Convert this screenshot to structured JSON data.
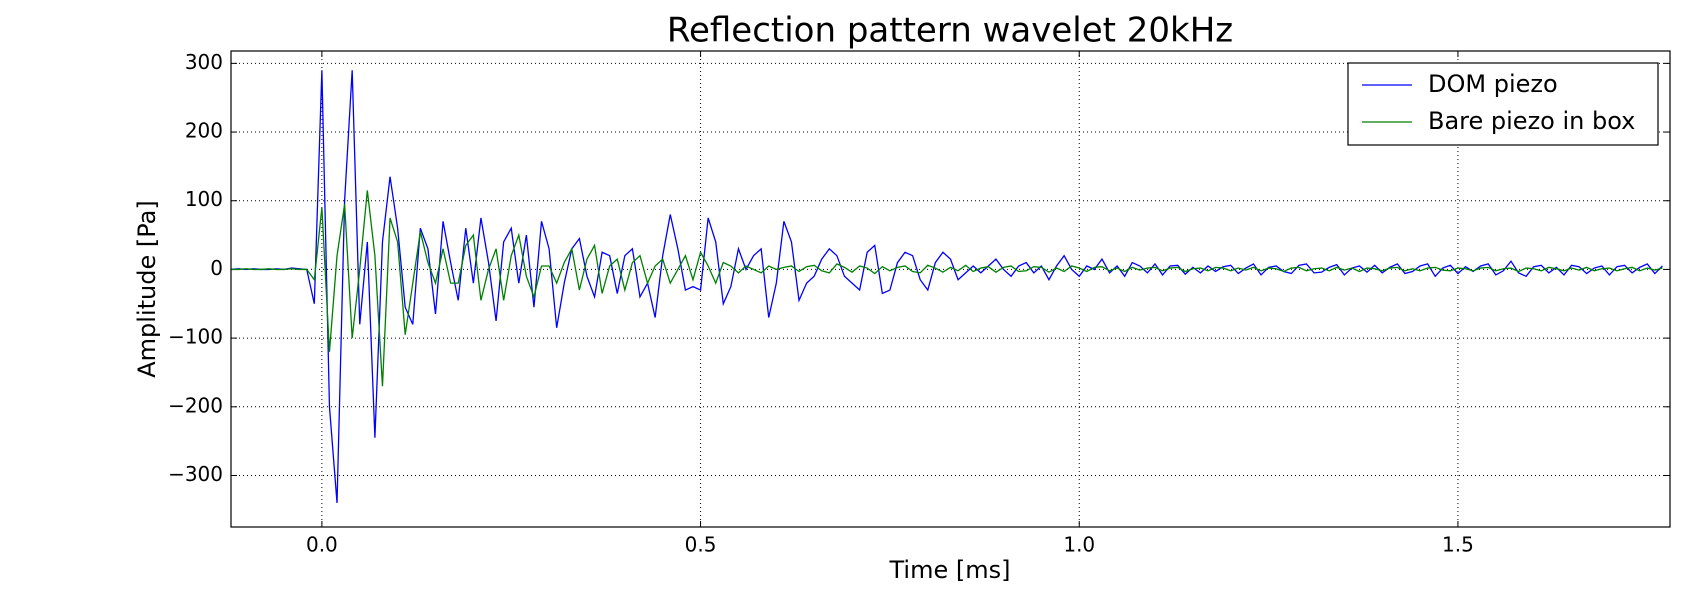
{
  "chart_data": {
    "type": "line",
    "title": "Reflection pattern wavelet 20kHz",
    "x_label": "Time [ms]",
    "y_label": "Amplitude [Pa]",
    "x": [
      -0.12,
      -0.11,
      -0.1,
      -0.09,
      -0.08,
      -0.07,
      -0.06,
      -0.05,
      -0.04,
      -0.03,
      -0.02,
      -0.01,
      0,
      0.01,
      0.02,
      0.03,
      0.04,
      0.05,
      0.06,
      0.07,
      0.08,
      0.09,
      0.1,
      0.11,
      0.12,
      0.13,
      0.14,
      0.15,
      0.16,
      0.17,
      0.18,
      0.19,
      0.2,
      0.21,
      0.22,
      0.23,
      0.24,
      0.25,
      0.26,
      0.27,
      0.28,
      0.29,
      0.3,
      0.31,
      0.32,
      0.33,
      0.34,
      0.35,
      0.36,
      0.37,
      0.38,
      0.39,
      0.4,
      0.41,
      0.42,
      0.43,
      0.44,
      0.45,
      0.46,
      0.47,
      0.48,
      0.49,
      0.5,
      0.51,
      0.52,
      0.53,
      0.54,
      0.55,
      0.56,
      0.57,
      0.58,
      0.59,
      0.6,
      0.61,
      0.62,
      0.63,
      0.64,
      0.65,
      0.66,
      0.67,
      0.68,
      0.69,
      0.7,
      0.71,
      0.72,
      0.73,
      0.74,
      0.75,
      0.76,
      0.77,
      0.78,
      0.79,
      0.8,
      0.81,
      0.82,
      0.83,
      0.84,
      0.85,
      0.86,
      0.87,
      0.88,
      0.89,
      0.9,
      0.91,
      0.92,
      0.93,
      0.94,
      0.95,
      0.96,
      0.97,
      0.98,
      0.99,
      1,
      1.01,
      1.02,
      1.03,
      1.04,
      1.05,
      1.06,
      1.07,
      1.08,
      1.09,
      1.1,
      1.11,
      1.12,
      1.13,
      1.14,
      1.15,
      1.16,
      1.17,
      1.18,
      1.19,
      1.2,
      1.21,
      1.22,
      1.23,
      1.24,
      1.25,
      1.26,
      1.27,
      1.28,
      1.29,
      1.3,
      1.31,
      1.32,
      1.33,
      1.34,
      1.35,
      1.36,
      1.37,
      1.38,
      1.39,
      1.4,
      1.41,
      1.42,
      1.43,
      1.44,
      1.45,
      1.46,
      1.47,
      1.48,
      1.49,
      1.5,
      1.51,
      1.52,
      1.53,
      1.54,
      1.55,
      1.56,
      1.57,
      1.58,
      1.59,
      1.6,
      1.61,
      1.62,
      1.63,
      1.64,
      1.65,
      1.66,
      1.67,
      1.68,
      1.69,
      1.7,
      1.71,
      1.72,
      1.73,
      1.74,
      1.75,
      1.76,
      1.77
    ],
    "series": [
      {
        "name": "DOM piezo",
        "color": "#0000ff",
        "values": [
          0,
          1,
          0,
          1,
          0,
          0,
          1,
          0,
          2,
          1,
          0,
          -50,
          290,
          -200,
          -340,
          100,
          290,
          -80,
          40,
          -245,
          40,
          135,
          60,
          -55,
          -80,
          60,
          30,
          -65,
          70,
          10,
          -45,
          60,
          -20,
          75,
          10,
          -75,
          40,
          60,
          -20,
          50,
          -55,
          70,
          30,
          -85,
          -20,
          30,
          45,
          -10,
          -40,
          25,
          20,
          -35,
          20,
          30,
          -40,
          -20,
          -70,
          20,
          80,
          30,
          -30,
          -25,
          -30,
          75,
          40,
          -50,
          -25,
          30,
          0,
          20,
          30,
          -70,
          -20,
          70,
          40,
          -45,
          -20,
          -10,
          15,
          30,
          20,
          -10,
          -20,
          -30,
          25,
          35,
          -35,
          -30,
          10,
          25,
          20,
          -15,
          -30,
          10,
          25,
          15,
          -15,
          -5,
          5,
          -5,
          5,
          15,
          0,
          -10,
          5,
          10,
          -5,
          5,
          -15,
          5,
          20,
          0,
          -10,
          5,
          0,
          15,
          -5,
          5,
          -10,
          10,
          5,
          -5,
          8,
          -8,
          5,
          6,
          -7,
          3,
          -5,
          5,
          -3,
          4,
          6,
          -6,
          2,
          8,
          -8,
          3,
          5,
          -3,
          -6,
          6,
          8,
          -5,
          -4,
          3,
          7,
          -8,
          2,
          5,
          -4,
          6,
          -5,
          3,
          8,
          -6,
          -3,
          5,
          8,
          -10,
          2,
          6,
          -6,
          4,
          -3,
          5,
          8,
          -8,
          -2,
          12,
          -5,
          -10,
          4,
          6,
          -5,
          3,
          -8,
          6,
          4,
          -6,
          2,
          5,
          -8,
          4,
          6,
          -5,
          3,
          8,
          -6,
          5
        ]
      },
      {
        "name": "Bare piezo in box",
        "color": "#008000",
        "values": [
          0,
          0,
          1,
          0,
          0,
          1,
          0,
          0,
          1,
          0,
          0,
          -15,
          90,
          -120,
          20,
          95,
          -100,
          0,
          115,
          20,
          -170,
          75,
          40,
          -95,
          -20,
          55,
          10,
          -20,
          30,
          -20,
          -20,
          35,
          50,
          -45,
          0,
          30,
          -45,
          20,
          50,
          -10,
          -40,
          5,
          5,
          -20,
          10,
          30,
          -30,
          15,
          35,
          -35,
          5,
          15,
          -30,
          10,
          20,
          -20,
          5,
          15,
          -20,
          0,
          20,
          -15,
          25,
          5,
          -20,
          10,
          5,
          -5,
          5,
          0,
          -5,
          5,
          0,
          3,
          5,
          -3,
          4,
          6,
          -2,
          -5,
          8,
          3,
          -4,
          5,
          2,
          -6,
          4,
          -2,
          3,
          5,
          -3,
          -5,
          6,
          2,
          -4,
          3,
          -2,
          6,
          -3,
          2,
          4,
          -4,
          3,
          5,
          -3,
          -2,
          4,
          3,
          -4,
          2,
          -3,
          5,
          2,
          -3,
          3,
          4,
          -2,
          2,
          -3,
          3,
          -1,
          2,
          3,
          -2,
          2,
          3,
          -3,
          1,
          2,
          -2,
          3,
          2,
          -2,
          2,
          -1,
          3,
          -2,
          2,
          1,
          -3,
          2,
          3,
          -2,
          1,
          2,
          -2,
          3,
          -1,
          2,
          -3,
          2,
          1,
          -2,
          2,
          3,
          -2,
          1,
          -2,
          2,
          3,
          -1,
          -2,
          2,
          1,
          -2,
          2,
          3,
          -2,
          1,
          2,
          -3,
          2,
          1,
          -2,
          3,
          1,
          -2,
          2,
          -1,
          3,
          -2,
          1,
          2,
          -2,
          1,
          3,
          -2,
          2,
          -1,
          2
        ]
      }
    ],
    "xlim": [
      -0.12,
      1.78
    ],
    "ylim": [
      -375,
      318
    ],
    "xticks": [
      {
        "value": 0,
        "label": "0.0"
      },
      0.5,
      {
        "value": 1,
        "label": "1.0"
      },
      1.5
    ],
    "yticks": [
      {
        "value": -300,
        "label": "−300"
      },
      {
        "value": -200,
        "label": "−200"
      },
      {
        "value": -100,
        "label": "−100"
      },
      0,
      100,
      200,
      300
    ],
    "grid": true,
    "legend": "upper right"
  }
}
